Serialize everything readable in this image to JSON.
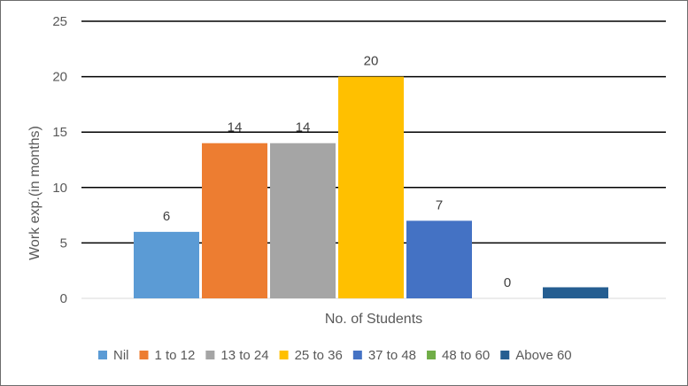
{
  "chart_data": {
    "type": "bar",
    "title": "",
    "xlabel": "No. of Students",
    "ylabel": "Work exp.(in months)",
    "ylim": [
      0,
      25
    ],
    "yticks": [
      0,
      5,
      10,
      15,
      20,
      25
    ],
    "grid": true,
    "legend_position": "bottom",
    "series": [
      {
        "name": "Nil",
        "value": 6,
        "label": "6",
        "color": "#5b9bd5"
      },
      {
        "name": "1 to 12",
        "value": 14,
        "label": "14",
        "color": "#ed7d31"
      },
      {
        "name": "13 to 24",
        "value": 14,
        "label": "14",
        "color": "#a5a5a5"
      },
      {
        "name": "25 to 36",
        "value": 20,
        "label": "20",
        "color": "#ffc000"
      },
      {
        "name": "37 to 48",
        "value": 7,
        "label": "7",
        "color": "#4472c4"
      },
      {
        "name": "48 to 60",
        "value": 0,
        "label": "0",
        "color": "#70ad47"
      },
      {
        "name": "Above 60",
        "value": 1,
        "label": "",
        "color": "#255e91"
      }
    ]
  }
}
